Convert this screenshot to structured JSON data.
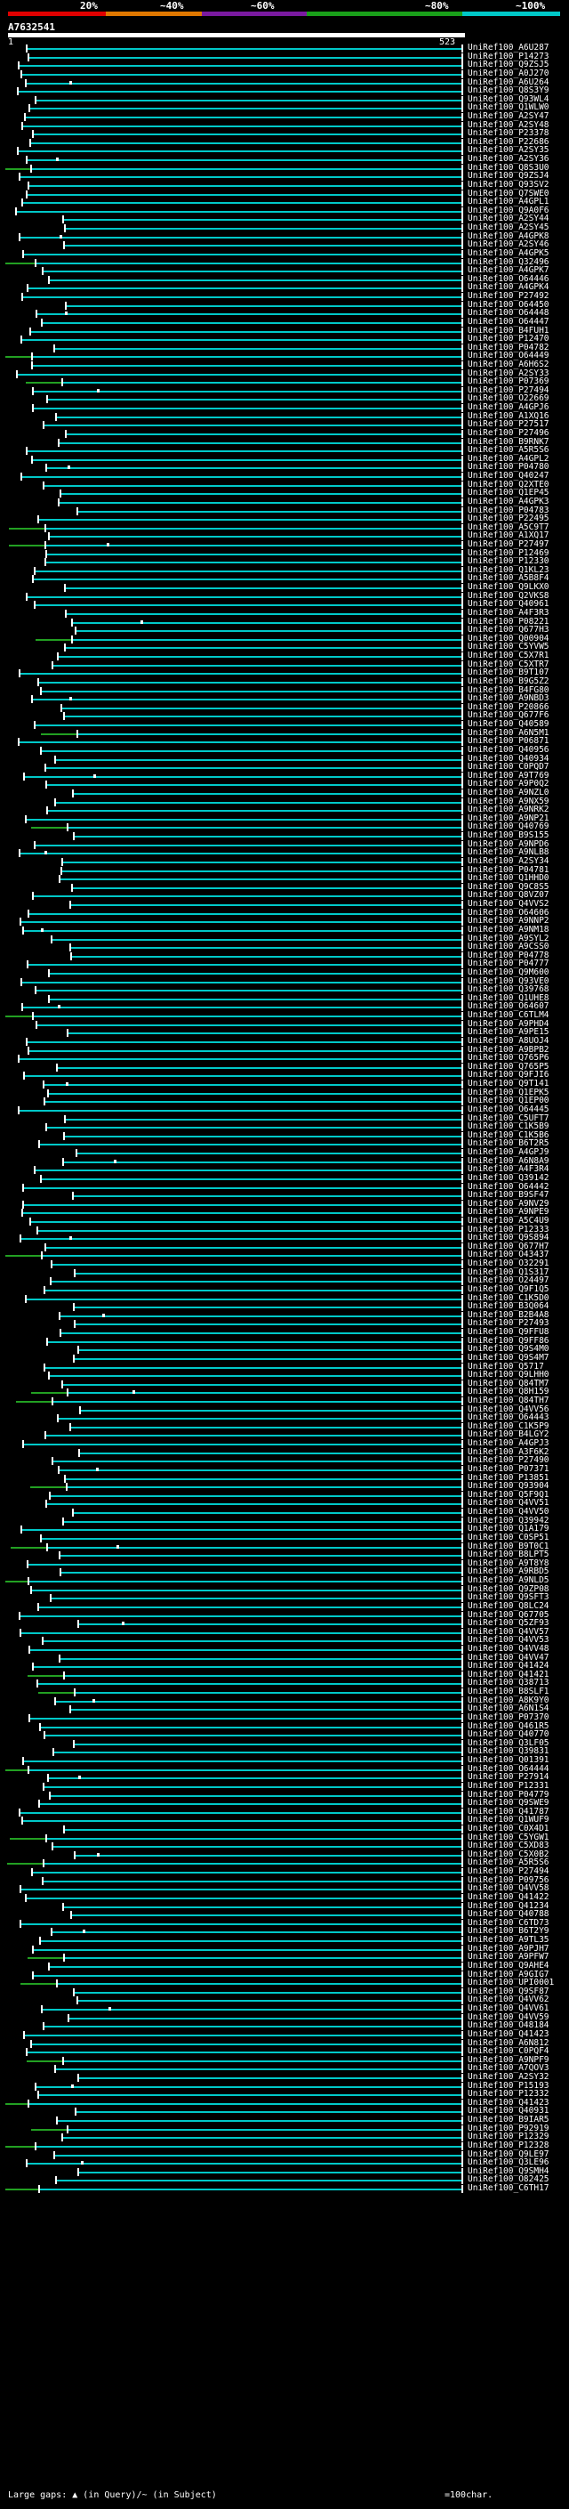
{
  "scale": {
    "labels": [
      "20%",
      "~40%",
      "~60%",
      "~80%",
      "~100%"
    ],
    "colors": [
      "#e00000",
      "#e07800",
      "#7a1aa0",
      "#1aa01a",
      "#00c8c8"
    ]
  },
  "query_id": "A7632541",
  "ruler": {
    "start": "1",
    "end": "523"
  },
  "legend": {
    "large_gaps": "Large gaps: ▲ (in Query)/~ (in Subject)",
    "scale_label": "=100char."
  },
  "row_colors": {
    "cyan": "#00c8c8",
    "green": "#22a022",
    "dark": "#007070"
  },
  "hits": [
    "UniRef100_A6U287",
    "UniRef100_P14273",
    "UniRef100_Q9ZSJ5",
    "UniRef100_A0J270",
    "UniRef100_A6U264",
    "UniRef100_Q8S3Y9",
    "UniRef100_Q93WL4",
    "UniRef100_Q1WLW0",
    "UniRef100_A2SY47",
    "UniRef100_A2SY48",
    "UniRef100_P23378",
    "UniRef100_P22686",
    "UniRef100_A2SY35",
    "UniRef100_A2SY36",
    "UniRef100_Q8S3U0",
    "UniRef100_Q9ZSJ4",
    "UniRef100_Q93SV2",
    "UniRef100_Q7SWE0",
    "UniRef100_A4GPL1",
    "UniRef100_Q9A0F6",
    "UniRef100_A2SY44",
    "UniRef100_A2SY45",
    "UniRef100_A4GPK8",
    "UniRef100_A2SY46",
    "UniRef100_A4GPK5",
    "UniRef100_Q32496",
    "UniRef100_A4GPK7",
    "UniRef100_O64446",
    "UniRef100_A4GPK4",
    "UniRef100_P27492",
    "UniRef100_O64450",
    "UniRef100_O64448",
    "UniRef100_O64447",
    "UniRef100_B4FUH1",
    "UniRef100_P12470",
    "UniRef100_P04782",
    "UniRef100_O64449",
    "UniRef100_A6H6S2",
    "UniRef100_A2SY33",
    "UniRef100_P07369",
    "UniRef100_P27494",
    "UniRef100_O22669",
    "UniRef100_A4GPJ6",
    "UniRef100_A1XQ16",
    "UniRef100_P27517",
    "UniRef100_P27496",
    "UniRef100_B9RNK7",
    "UniRef100_A5R5S6",
    "UniRef100_A4GPL2",
    "UniRef100_P04780",
    "UniRef100_Q40247",
    "UniRef100_Q2XTE0",
    "UniRef100_Q1EP45",
    "UniRef100_A4GPK3",
    "UniRef100_P04783",
    "UniRef100_P22495",
    "UniRef100_A5C9T7",
    "UniRef100_A1XQ17",
    "UniRef100_P27497",
    "UniRef100_P12469",
    "UniRef100_P12330",
    "UniRef100_Q1KL23",
    "UniRef100_A5B8F4",
    "UniRef100_Q9LKX0",
    "UniRef100_Q2VKS8",
    "UniRef100_Q40961",
    "UniRef100_A4F3R3",
    "UniRef100_P08221",
    "UniRef100_Q677H3",
    "UniRef100_Q00904",
    "UniRef100_C5YVW5",
    "UniRef100_C5X7R1",
    "UniRef100_C5XTR7",
    "UniRef100_B9T107",
    "UniRef100_B9G5Z2",
    "UniRef100_B4FG80",
    "UniRef100_A9NBD3",
    "UniRef100_P20866",
    "UniRef100_Q677F6",
    "UniRef100_Q40589",
    "UniRef100_A6N5M1",
    "UniRef100_P06871",
    "UniRef100_Q40956",
    "UniRef100_Q40934",
    "UniRef100_C0PQD7",
    "UniRef100_A9T769",
    "UniRef100_A9P0Q2",
    "UniRef100_A9NZL0",
    "UniRef100_A9NX59",
    "UniRef100_A9NRK2",
    "UniRef100_A9NP21",
    "UniRef100_Q40769",
    "UniRef100_B9S155",
    "UniRef100_A9NPD6",
    "UniRef100_A9NLB8",
    "UniRef100_A2SY34",
    "UniRef100_P04781",
    "UniRef100_Q1HHD0",
    "UniRef100_Q9C8S5",
    "UniRef100_Q8VZ07",
    "UniRef100_Q4VVS2",
    "UniRef100_O64606",
    "UniRef100_A9NNP2",
    "UniRef100_A9NM18",
    "UniRef100_A9SYL2",
    "UniRef100_A9CSS0",
    "UniRef100_P04778",
    "UniRef100_P04777",
    "UniRef100_Q9M600",
    "UniRef100_Q93VE0",
    "UniRef100_Q39768",
    "UniRef100_Q1UHE8",
    "UniRef100_O64607",
    "UniRef100_C6TLM4",
    "UniRef100_A9PHD4",
    "UniRef100_A9PE15",
    "UniRef100_A8UOJ4",
    "UniRef100_A9BPB2",
    "UniRef100_Q765P6",
    "UniRef100_Q765P5",
    "UniRef100_Q9FJI6",
    "UniRef100_Q9T141",
    "UniRef100_Q1EPK5",
    "UniRef100_Q1EP00",
    "UniRef100_O64445",
    "UniRef100_C5UFT7",
    "UniRef100_C1K5B9",
    "UniRef100_C1K5B6",
    "UniRef100_B6T2R5",
    "UniRef100_A4GPJ9",
    "UniRef100_A6N8A9",
    "UniRef100_A4F3R4",
    "UniRef100_Q39142",
    "UniRef100_O64442",
    "UniRef100_B9SF47",
    "UniRef100_A9NV29",
    "UniRef100_A9NPE9",
    "UniRef100_A5C4U9",
    "UniRef100_P12333",
    "UniRef100_Q9S894",
    "UniRef100_Q677H7",
    "UniRef100_O43437",
    "UniRef100_O32291",
    "UniRef100_Q1S317",
    "UniRef100_O24497",
    "UniRef100_Q9F1Q5",
    "UniRef100_C1K5D0",
    "UniRef100_B3Q064",
    "UniRef100_B2B4A8",
    "UniRef100_P27493",
    "UniRef100_Q9FFU8",
    "UniRef100_Q9FF86",
    "UniRef100_Q9S4M0",
    "UniRef100_Q9S4M7",
    "UniRef100_Q5717",
    "UniRef100_Q9LHH0",
    "UniRef100_Q84TM7",
    "UniRef100_Q8H159",
    "UniRef100_Q84TH7",
    "UniRef100_Q4VV56",
    "UniRef100_O64443",
    "UniRef100_C1K5P9",
    "UniRef100_B4LGY2",
    "UniRef100_A4GPJ3",
    "UniRef100_A3F6K2",
    "UniRef100_P27490",
    "UniRef100_P07371",
    "UniRef100_P13851",
    "UniRef100_Q93904",
    "UniRef100_Q5F9Q1",
    "UniRef100_Q4VV51",
    "UniRef100_Q4VV50",
    "UniRef100_Q39942",
    "UniRef100_Q1A179",
    "UniRef100_C0SP51",
    "UniRef100_B9T0C1",
    "UniRef100_B8LPT5",
    "UniRef100_A9T8Y8",
    "UniRef100_A9RBD5",
    "UniRef100_A9NLD5",
    "UniRef100_Q9ZP08",
    "UniRef100_Q9SFT3",
    "UniRef100_Q8LC24",
    "UniRef100_Q67705",
    "UniRef100_Q5ZF93",
    "UniRef100_Q4VV57",
    "UniRef100_Q4VV53",
    "UniRef100_Q4VV48",
    "UniRef100_Q4VV47",
    "UniRef100_Q41424",
    "UniRef100_Q41421",
    "UniRef100_Q38713",
    "UniRef100_B8SLF1",
    "UniRef100_A8K9Y0",
    "UniRef100_A6N1S4",
    "UniRef100_P07370",
    "UniRef100_Q461R5",
    "UniRef100_Q40770",
    "UniRef100_Q3LF05",
    "UniRef100_Q39831",
    "UniRef100_Q01391",
    "UniRef100_O64444",
    "UniRef100_P27914",
    "UniRef100_P12331",
    "UniRef100_P04779",
    "UniRef100_Q9SWE9",
    "UniRef100_Q41787",
    "UniRef100_Q1WUF9",
    "UniRef100_C0X4D1",
    "UniRef100_C5YGW1",
    "UniRef100_C5XD83",
    "UniRef100_C5X0B2",
    "UniRef100_A5R5S6",
    "UniRef100_P27494",
    "UniRef100_P09756",
    "UniRef100_Q4VV58",
    "UniRef100_Q41422",
    "UniRef100_Q41234",
    "UniRef100_Q40788",
    "UniRef100_C6TD73",
    "UniRef100_B6T2Y9",
    "UniRef100_A9TL35",
    "UniRef100_A9PJH7",
    "UniRef100_A9PFW7",
    "UniRef100_Q9AHE4",
    "UniRef100_A9GIG7",
    "UniRef100_UPI0001",
    "UniRef100_Q9SF87",
    "UniRef100_Q4VV62",
    "UniRef100_Q4VV61",
    "UniRef100_Q4VV59",
    "UniRef100_O48184",
    "UniRef100_Q41423",
    "UniRef100_A6N812",
    "UniRef100_C0PQF4",
    "UniRef100_A9NPF9",
    "UniRef100_A7QOV3",
    "UniRef100_A2SY32",
    "UniRef100_P15193",
    "UniRef100_P12332",
    "UniRef100_Q41423",
    "UniRef100_Q40931",
    "UniRef100_B9IAR5",
    "UniRef100_P92919",
    "UniRef100_P12329",
    "UniRef100_P12328",
    "UniRef100_Q9LE97",
    "UniRef100_Q3LE96",
    "UniRef100_Q9SMH4",
    "UniRef100_O82425",
    "UniRef100_C6TH17"
  ]
}
